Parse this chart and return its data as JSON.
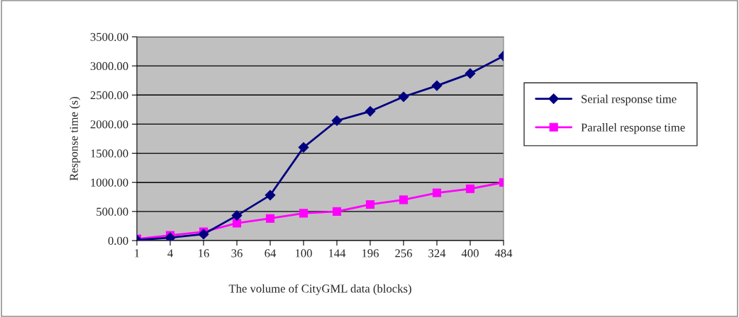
{
  "chart_data": {
    "type": "line",
    "xlabel": "The volume of CityGML data (blocks)",
    "ylabel": "Response time (s)",
    "categories": [
      "1",
      "4",
      "16",
      "36",
      "64",
      "100",
      "144",
      "196",
      "256",
      "324",
      "400",
      "484"
    ],
    "ylim": [
      0,
      3500
    ],
    "yticks": [
      {
        "value": 0,
        "label": "0.00"
      },
      {
        "value": 500,
        "label": "500.00"
      },
      {
        "value": 1000,
        "label": "1000.00"
      },
      {
        "value": 1500,
        "label": "1500.00"
      },
      {
        "value": 2000,
        "label": "2000.00"
      },
      {
        "value": 2500,
        "label": "2500.00"
      },
      {
        "value": 3000,
        "label": "3000.00"
      },
      {
        "value": 3500,
        "label": "3500.00"
      }
    ],
    "grid": "y",
    "legend": "right",
    "series": [
      {
        "name": "Serial response time",
        "color": "#000080",
        "marker": "diamond",
        "values": [
          10,
          50,
          110,
          430,
          780,
          1600,
          2060,
          2220,
          2470,
          2660,
          2870,
          3170
        ]
      },
      {
        "name": "Parallel response time",
        "color": "#ff00ff",
        "marker": "square",
        "values": [
          30,
          90,
          150,
          300,
          380,
          470,
          500,
          620,
          700,
          820,
          890,
          1000
        ]
      }
    ]
  }
}
